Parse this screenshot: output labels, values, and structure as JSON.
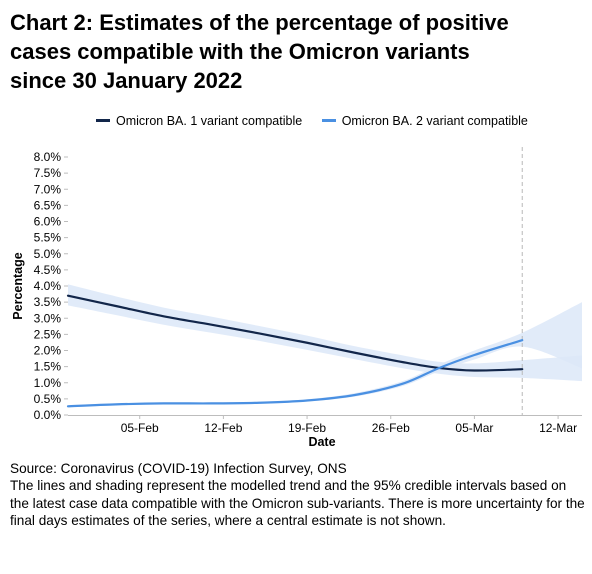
{
  "title_lines": [
    "Chart 2: Estimates of the percentage of positive",
    "cases compatible with the Omicron variants",
    "since 30 January 2022"
  ],
  "legend": {
    "items": [
      {
        "label": "Omicron BA. 1 variant compatible",
        "color": "#12264a"
      },
      {
        "label": "Omicron BA. 2 variant compatible",
        "color": "#4a90e2"
      }
    ]
  },
  "chart_data": {
    "type": "line",
    "title": "Chart 2: Estimates of the percentage of positive cases compatible with the Omicron variants since 30 January 2022",
    "xlabel": "Date",
    "ylabel": "Percentage",
    "xlim": [
      "2022-01-30",
      "2022-03-14"
    ],
    "x_ticks": [
      "2022-02-05",
      "2022-02-12",
      "2022-02-19",
      "2022-02-26",
      "2022-03-05",
      "2022-03-12"
    ],
    "x_tick_labels": [
      "05-Feb",
      "12-Feb",
      "19-Feb",
      "26-Feb",
      "05-Mar",
      "12-Mar"
    ],
    "ylim": [
      0,
      8
    ],
    "y_ticks": [
      0,
      0.5,
      1,
      1.5,
      2,
      2.5,
      3,
      3.5,
      4,
      4.5,
      5,
      5.5,
      6,
      6.5,
      7,
      7.5,
      8
    ],
    "y_tick_labels": [
      "0.0%",
      "0.5%",
      "1.0%",
      "1.5%",
      "2.0%",
      "2.5%",
      "3.0%",
      "3.5%",
      "4.0%",
      "4.5%",
      "5.0%",
      "5.5%",
      "6.0%",
      "6.5%",
      "7.0%",
      "7.5%",
      "8.0%"
    ],
    "grid": false,
    "legend_position": "top",
    "reference_line": {
      "x": "2022-03-09",
      "style": "dashed"
    },
    "series": [
      {
        "name": "Omicron BA. 1 variant compatible",
        "color": "#12264a",
        "band_color": "#dce8f8",
        "x": [
          "2022-01-30",
          "2022-02-03",
          "2022-02-07",
          "2022-02-11",
          "2022-02-15",
          "2022-02-19",
          "2022-02-23",
          "2022-02-27",
          "2022-03-02",
          "2022-03-05",
          "2022-03-09"
        ],
        "y": [
          3.7,
          3.38,
          3.06,
          2.8,
          2.53,
          2.24,
          1.93,
          1.64,
          1.46,
          1.38,
          1.42
        ],
        "lower": [
          3.4,
          3.1,
          2.8,
          2.55,
          2.3,
          2.02,
          1.73,
          1.45,
          1.28,
          1.18,
          1.15
        ],
        "upper": [
          4.05,
          3.68,
          3.33,
          3.05,
          2.76,
          2.46,
          2.13,
          1.85,
          1.65,
          1.6,
          1.7
        ],
        "band_extension": {
          "x": [
            "2022-03-09",
            "2022-03-14"
          ],
          "lower": [
            1.15,
            1.05
          ],
          "upper": [
            1.7,
            1.85
          ]
        }
      },
      {
        "name": "Omicron BA. 2 variant compatible",
        "color": "#4a90e2",
        "band_color": "#dce8f8",
        "x": [
          "2022-01-30",
          "2022-02-03",
          "2022-02-07",
          "2022-02-11",
          "2022-02-15",
          "2022-02-19",
          "2022-02-23",
          "2022-02-27",
          "2022-03-02",
          "2022-03-05",
          "2022-03-09"
        ],
        "y": [
          0.27,
          0.33,
          0.36,
          0.36,
          0.38,
          0.45,
          0.62,
          0.97,
          1.45,
          1.86,
          2.32
        ],
        "lower": [
          0.24,
          0.3,
          0.33,
          0.33,
          0.35,
          0.42,
          0.57,
          0.9,
          1.35,
          1.72,
          2.12
        ],
        "upper": [
          0.3,
          0.36,
          0.39,
          0.39,
          0.41,
          0.49,
          0.68,
          1.05,
          1.56,
          2.0,
          2.55
        ],
        "band_extension": {
          "x": [
            "2022-03-09",
            "2022-03-14"
          ],
          "lower": [
            2.12,
            1.45
          ],
          "upper": [
            2.55,
            3.5
          ]
        }
      }
    ]
  },
  "source_note": "Source: Coronavirus (COVID-19) Infection Survey, ONS",
  "footnote": "The lines and shading represent the modelled trend and the 95% credible intervals based on the latest case data compatible with the Omicron sub-variants. There is more uncertainty for the final days estimates of the series, where a central estimate is not shown."
}
